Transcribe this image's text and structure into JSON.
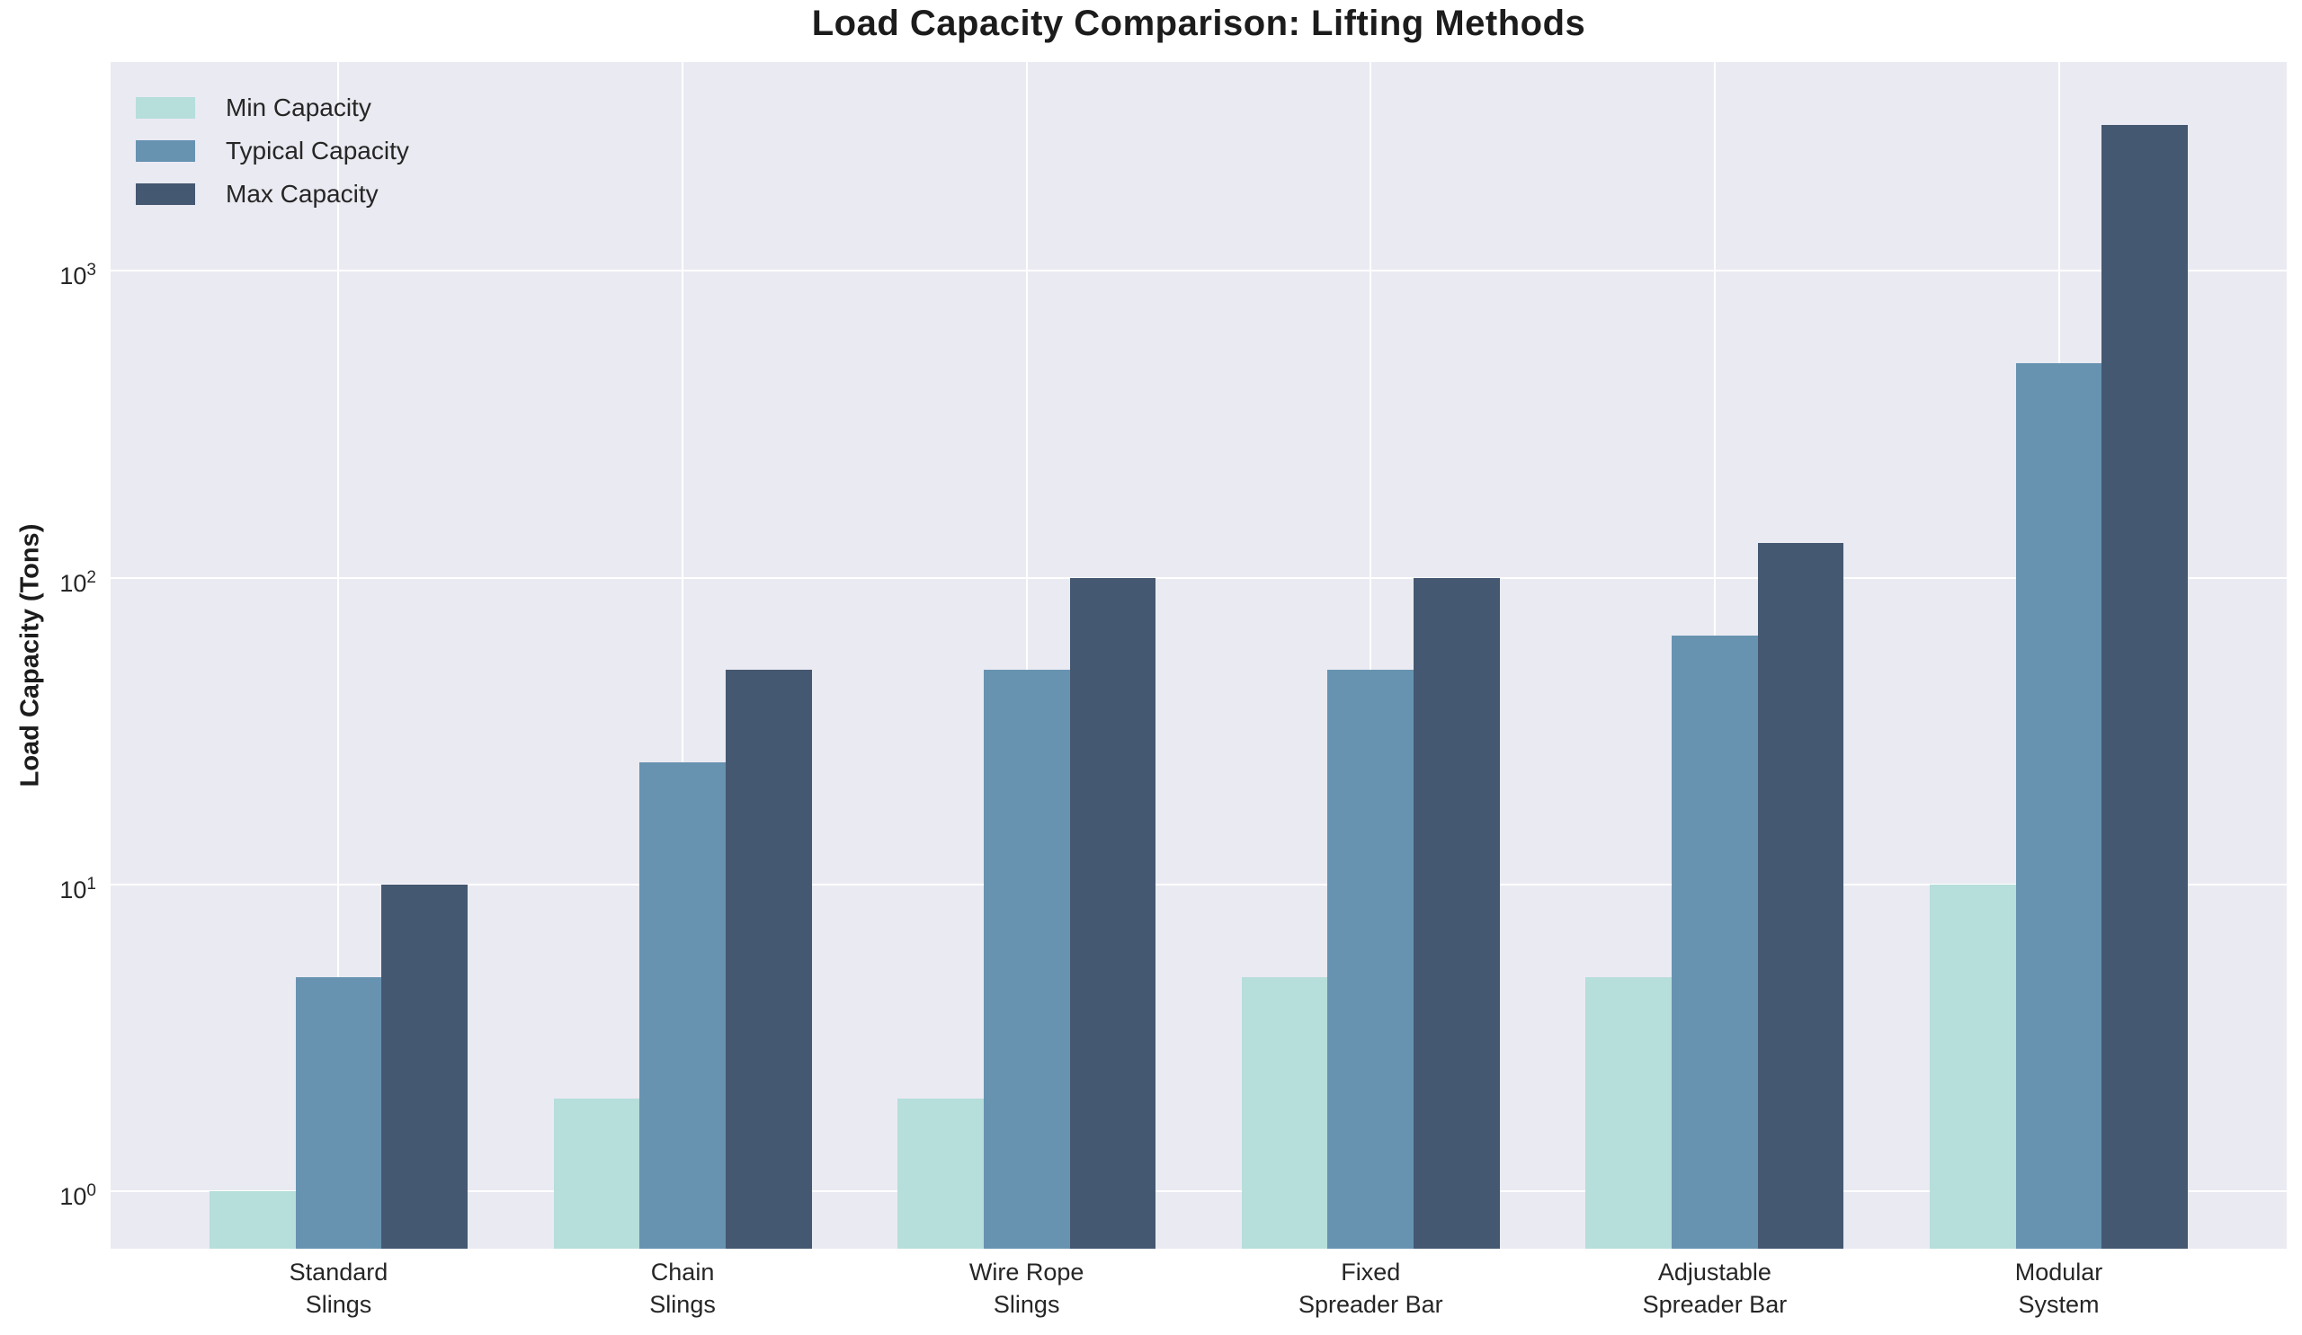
{
  "figure": {
    "title": "Load Capacity Comparison: Lifting Methods",
    "ylabel": "Load Capacity (Tons)"
  },
  "chart_data": {
    "type": "bar",
    "title": "Load Capacity Comparison: Lifting Methods",
    "xlabel": "",
    "ylabel": "Load Capacity (Tons)",
    "y_scale": "log",
    "ylim": [
      0.65,
      4800
    ],
    "grid": true,
    "legend_position": "upper left",
    "plot_background": "#eaeaf2",
    "grid_color": "#ffffff",
    "yticks": [
      {
        "value": 1,
        "base": "10",
        "exp": "0"
      },
      {
        "value": 10,
        "base": "10",
        "exp": "1"
      },
      {
        "value": 100,
        "base": "10",
        "exp": "2"
      },
      {
        "value": 1000,
        "base": "10",
        "exp": "3"
      }
    ],
    "categories": [
      "Standard\nSlings",
      "Chain\nSlings",
      "Wire Rope\nSlings",
      "Fixed\nSpreader Bar",
      "Adjustable\nSpreader Bar",
      "Modular\nSystem"
    ],
    "series": [
      {
        "name": "Min Capacity",
        "color": "#b6dedb",
        "values": [
          1,
          2,
          2,
          5,
          5,
          10
        ]
      },
      {
        "name": "Typical Capacity",
        "color": "#6793b1",
        "values": [
          5,
          25,
          50,
          50,
          65,
          500
        ]
      },
      {
        "name": "Max Capacity",
        "color": "#455871",
        "values": [
          10,
          50,
          100,
          100,
          130,
          3000
        ]
      }
    ]
  }
}
